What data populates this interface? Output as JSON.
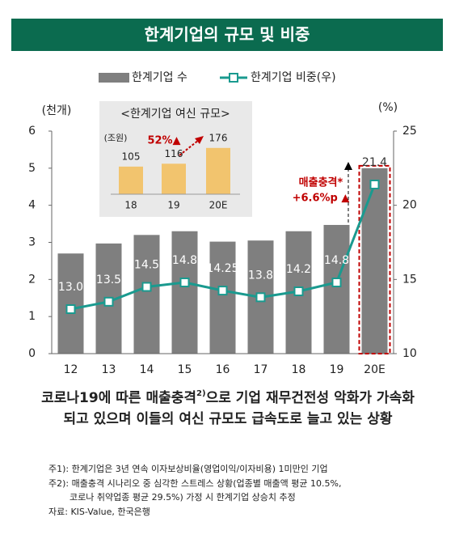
{
  "chart_data": [
    {
      "type": "bar",
      "title": "한계기업의 규모 및 비중",
      "categories": [
        "12",
        "13",
        "14",
        "15",
        "16",
        "17",
        "18",
        "19",
        "20E"
      ],
      "series": [
        {
          "name": "한계기업 수",
          "type": "bar",
          "color": "#7f7f7f",
          "values": [
            2.7,
            2.97,
            3.2,
            3.3,
            3.02,
            3.05,
            3.3,
            3.47,
            5.0
          ]
        },
        {
          "name": "한계기업 비중(우)",
          "type": "line",
          "axis": "y2",
          "color": "#1a9a8f",
          "values": [
            13.0,
            13.5,
            14.5,
            14.8,
            14.25,
            13.8,
            14.2,
            14.8,
            21.4
          ],
          "value_labels": [
            "13.0",
            "13.5",
            "14.5",
            "14.8",
            "14.25",
            "13.8",
            "14.2",
            "14.8",
            "21.4"
          ]
        }
      ],
      "y_label": "(천개)",
      "y2_label": "(%)",
      "ylim": [
        0,
        6
      ],
      "yticks": [
        0,
        1,
        2,
        3,
        4,
        5,
        6
      ],
      "y2lim": [
        10,
        25
      ],
      "y2ticks": [
        10,
        15,
        20,
        25
      ],
      "annotation": [
        "매출충격*",
        "+6.6%p ▲"
      ]
    },
    {
      "type": "bar",
      "title": "<한계기업 여신 규모>",
      "unit": "(조원)",
      "categories": [
        "18",
        "19",
        "20E"
      ],
      "values": [
        105,
        116,
        176
      ],
      "color": "#f2c46e",
      "annotation": "52%▲"
    }
  ],
  "headline": [
    [
      "코로나19에 따른 매출충격",
      "2)",
      "으로 기업 재무건전성 악화가 가속화"
    ],
    [
      "되고 있으며 이들의 여신 규모도 급속도로 늘고 있는 상황"
    ]
  ],
  "notes": [
    "주1): 한계기업은 3년 연속 이자보상비율(영업이익/이자비용) 1미만인 기업",
    "주2): 매출충격 시나리오 중 심각한 스트레스 상황(업종별 매출액 평균 10.5%,",
    "코로나 취약업종 평균 29.5%) 가정 시 한계기업 상승치 추정",
    "자료: KIS-Value, 한국은행"
  ]
}
